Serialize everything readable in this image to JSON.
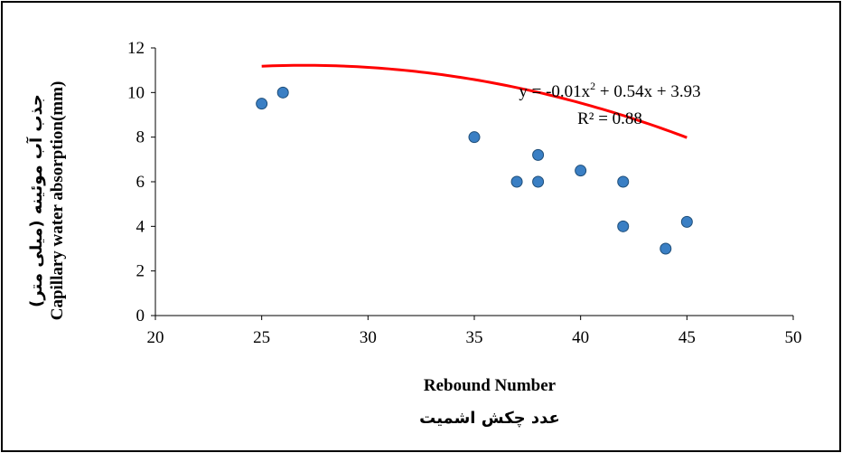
{
  "chart_data": {
    "type": "scatter",
    "x": [
      25,
      26,
      35,
      37,
      38,
      38,
      40,
      42,
      42,
      44,
      45
    ],
    "y": [
      9.5,
      10,
      8,
      6,
      6,
      7.2,
      6.5,
      6,
      4,
      3,
      4.2
    ],
    "xlim": [
      20,
      50
    ],
    "ylim": [
      0,
      12
    ],
    "x_ticks": [
      "20",
      "25",
      "30",
      "35",
      "40",
      "45",
      "50"
    ],
    "y_ticks": [
      "0",
      "2",
      "4",
      "6",
      "8",
      "10",
      "12"
    ],
    "xlabel": "Rebound Number",
    "xlabel_fa": "عدد چکش اشمیت",
    "ylabel": "Capillary water absorption(mm)",
    "ylabel_fa": "جذب آب موئینه (میلی متر)",
    "trendline": {
      "type": "polynomial",
      "coefficients": [
        -0.01,
        0.54,
        3.93
      ],
      "x_range": [
        25,
        45
      ],
      "color": "#ff0000"
    },
    "equation": {
      "prefix": "y = -0.01x",
      "exponent": "2",
      "suffix": " + 0.54x + 3.93"
    },
    "r_squared": "R² = 0.88",
    "grid": false,
    "legend": "none",
    "marker_color": "#3a7fc4",
    "marker_edge_color": "#1f4e79"
  }
}
